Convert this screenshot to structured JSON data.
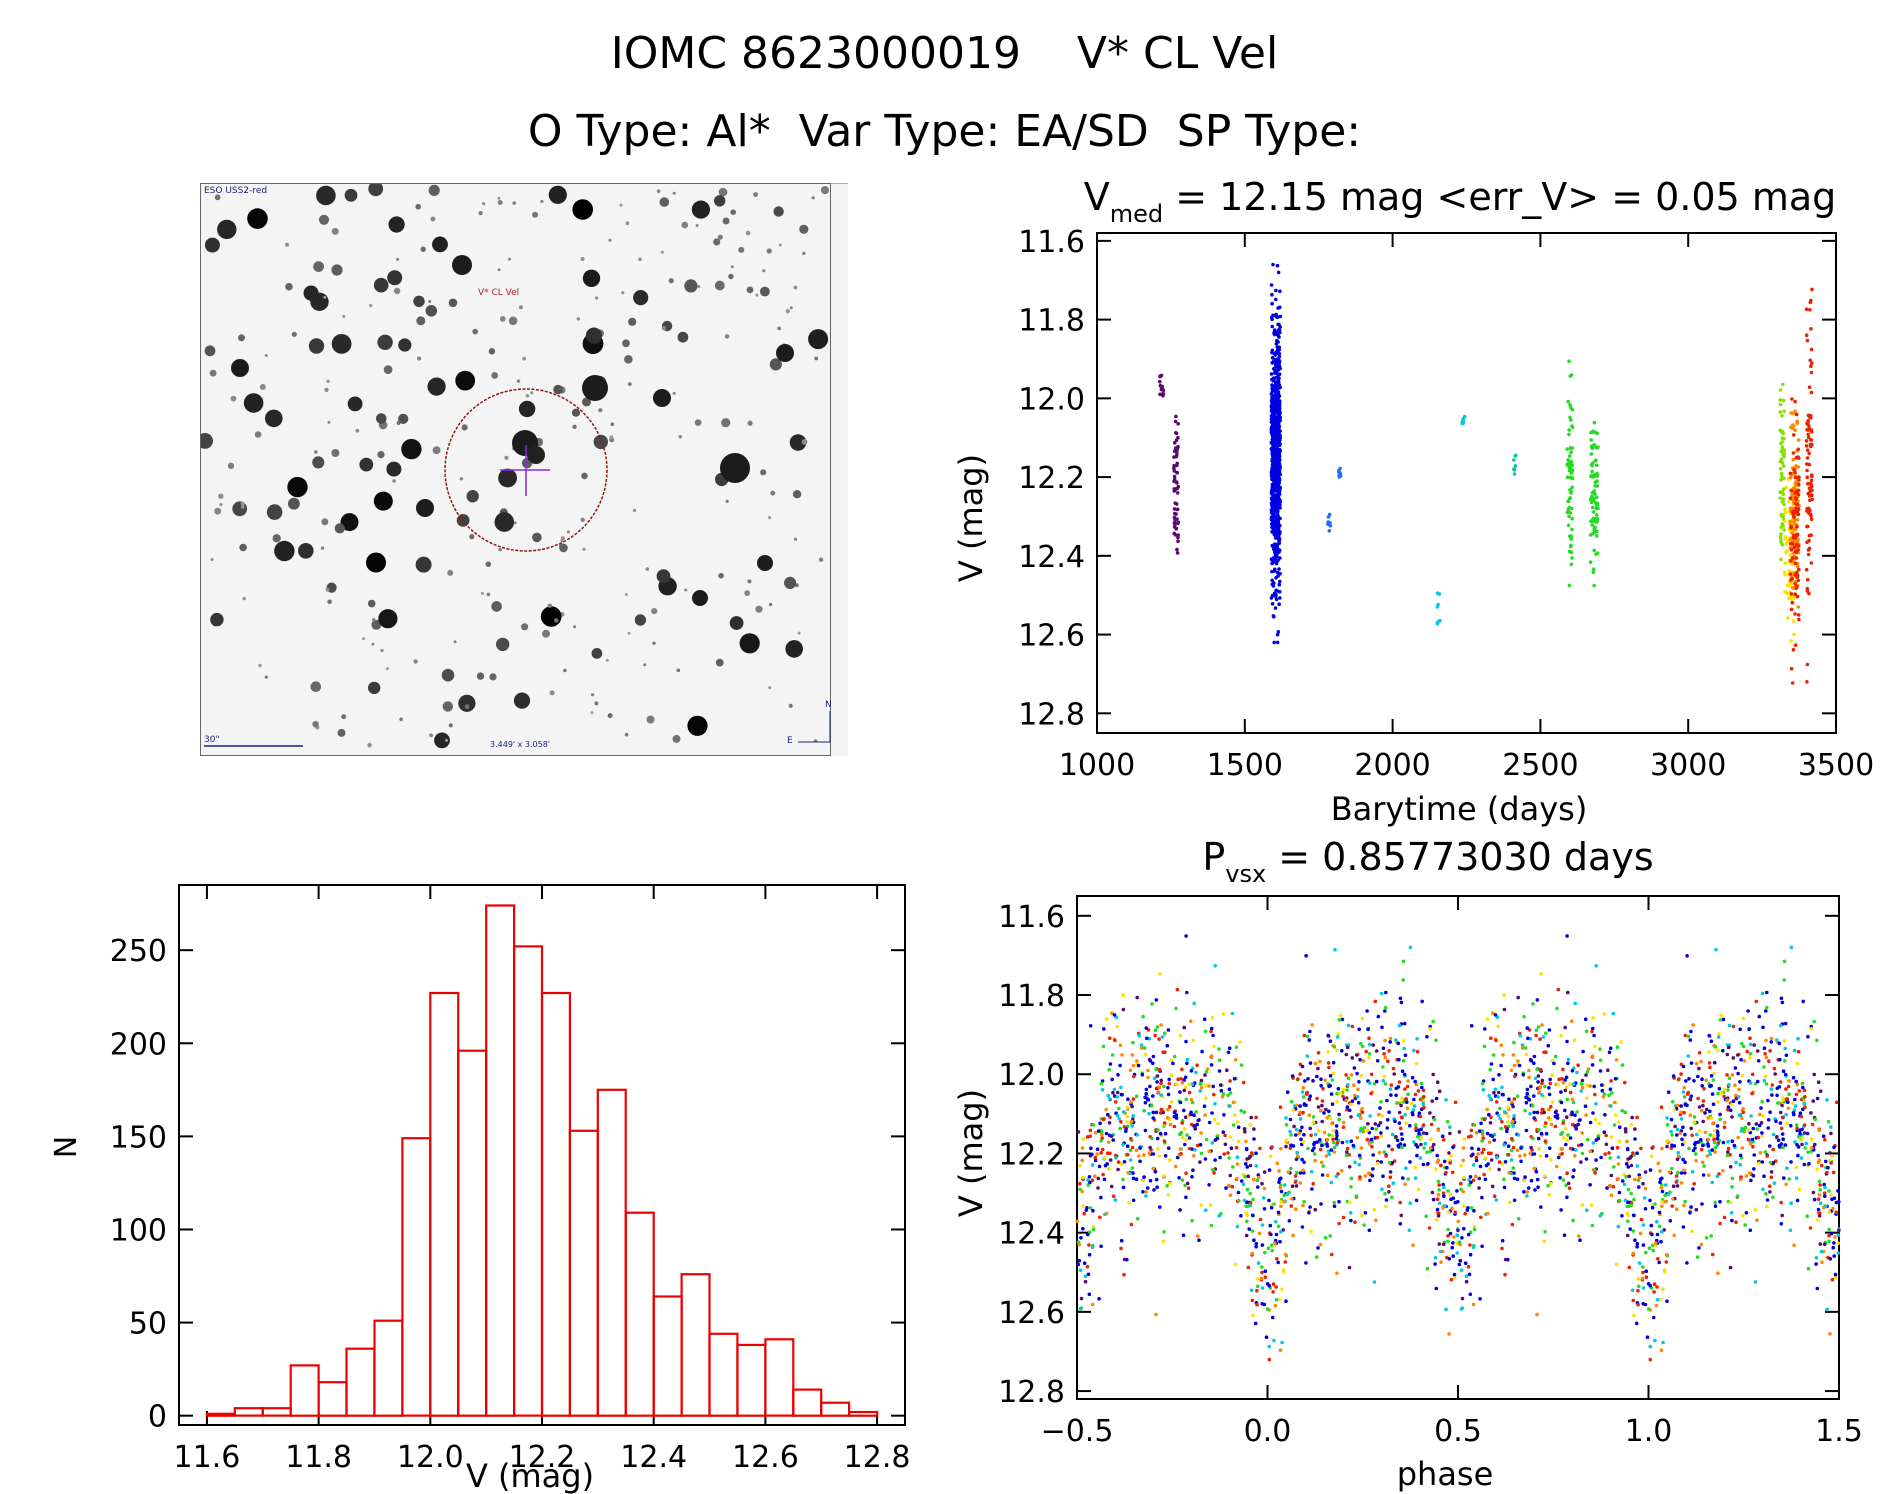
{
  "header": {
    "line1": "IOMC 8623000019    V* CL Vel",
    "line2": "O Type: Al*  Var Type: EA/SD  SP Type:"
  },
  "finder": {
    "survey_label": "ESO USS2-red",
    "target_label": "V* CL Vel",
    "scale_label": "30\"",
    "fov_label": "3.449' x 3.058'",
    "north_label": "N",
    "east_label": "E",
    "marker_color": "#8b1a1a",
    "crosshair_color": "#8a2be2"
  },
  "chart_data": [
    {
      "id": "lightcurve",
      "type": "scatter",
      "title_main": "V",
      "title_sub": "med",
      "title_rest": " = 12.15 mag <err_V> = 0.05 mag",
      "xlabel": "Barytime (days)",
      "ylabel": "V (mag)",
      "xlim": [
        1000,
        3500
      ],
      "ylim": [
        12.85,
        11.58
      ],
      "xticks": [
        1000,
        1500,
        2000,
        2500,
        3000,
        3500
      ],
      "xtick_labels": [
        "1000",
        "1500",
        "2000",
        "2500",
        "3000",
        "3500"
      ],
      "yticks": [
        11.6,
        11.8,
        12.0,
        12.2,
        12.4,
        12.6,
        12.8
      ],
      "ytick_labels": [
        "11.6",
        "11.8",
        "12.0",
        "12.2",
        "12.4",
        "12.6",
        "12.8"
      ],
      "groups": [
        {
          "color": "#5a0a6e",
          "x_range": [
            1210,
            1225
          ],
          "y_range": [
            11.9,
            12.02
          ],
          "n": 14
        },
        {
          "color": "#5a0a6e",
          "x_range": [
            1260,
            1275
          ],
          "y_range": [
            11.98,
            12.48
          ],
          "n": 60
        },
        {
          "color": "#0000e0",
          "x_range": [
            1590,
            1620
          ],
          "y_range": [
            11.66,
            12.62
          ],
          "n": 750
        },
        {
          "color": "#1e6fff",
          "x_range": [
            1780,
            1790
          ],
          "y_range": [
            12.28,
            12.38
          ],
          "n": 8
        },
        {
          "color": "#1e6fff",
          "x_range": [
            1815,
            1825
          ],
          "y_range": [
            12.16,
            12.22
          ],
          "n": 8
        },
        {
          "color": "#00c8e0",
          "x_range": [
            2150,
            2160
          ],
          "y_range": [
            12.47,
            12.61
          ],
          "n": 8
        },
        {
          "color": "#00c8e0",
          "x_range": [
            2235,
            2245
          ],
          "y_range": [
            12.02,
            12.1
          ],
          "n": 8
        },
        {
          "color": "#00c8a0",
          "x_range": [
            2410,
            2420
          ],
          "y_range": [
            12.1,
            12.22
          ],
          "n": 8
        },
        {
          "color": "#22dd22",
          "x_range": [
            2590,
            2610
          ],
          "y_range": [
            11.82,
            12.58
          ],
          "n": 70
        },
        {
          "color": "#22dd22",
          "x_range": [
            2670,
            2695
          ],
          "y_range": [
            11.95,
            12.58
          ],
          "n": 80
        },
        {
          "color": "#88e000",
          "x_range": [
            3310,
            3325
          ],
          "y_range": [
            11.88,
            12.55
          ],
          "n": 60
        },
        {
          "color": "#ffe000",
          "x_range": [
            3325,
            3360
          ],
          "y_range": [
            12.15,
            12.68
          ],
          "n": 80
        },
        {
          "color": "#ff8800",
          "x_range": [
            3345,
            3375
          ],
          "y_range": [
            11.95,
            12.58
          ],
          "n": 120
        },
        {
          "color": "#ee2200",
          "x_range": [
            3345,
            3375
          ],
          "y_range": [
            11.95,
            12.75
          ],
          "n": 90
        },
        {
          "color": "#ee2200",
          "x_range": [
            3400,
            3420
          ],
          "y_range": [
            11.6,
            12.72
          ],
          "n": 90
        }
      ]
    },
    {
      "id": "histogram",
      "type": "bar",
      "xlabel": "V (mag)",
      "ylabel": "N",
      "xlim": [
        11.55,
        12.85
      ],
      "ylim": [
        -5,
        285
      ],
      "xticks": [
        11.6,
        11.8,
        12.0,
        12.2,
        12.4,
        12.6,
        12.8
      ],
      "xtick_labels": [
        "11.6",
        "11.8",
        "12.0",
        "12.2",
        "12.4",
        "12.6",
        "12.8"
      ],
      "yticks": [
        0,
        50,
        100,
        150,
        200,
        250
      ],
      "ytick_labels": [
        "0",
        "50",
        "100",
        "150",
        "200",
        "250"
      ],
      "bin_start": 11.6,
      "bin_width": 0.05,
      "values": [
        1,
        4,
        4,
        27,
        18,
        36,
        51,
        149,
        227,
        196,
        274,
        252,
        227,
        153,
        175,
        109,
        64,
        76,
        44,
        38,
        41,
        14,
        7,
        2
      ]
    },
    {
      "id": "phased",
      "type": "scatter",
      "title_main": "P",
      "title_sub": "vsx",
      "title_rest": " = 0.85773030 days",
      "xlabel": "phase",
      "ylabel": "V (mag)",
      "xlim": [
        -0.5,
        1.5
      ],
      "ylim": [
        12.82,
        11.55
      ],
      "xticks": [
        -0.5,
        0.0,
        0.5,
        1.0,
        1.5
      ],
      "xtick_labels": [
        "−0.5",
        "0.0",
        "0.5",
        "1.0",
        "1.5"
      ],
      "yticks": [
        11.6,
        11.8,
        12.0,
        12.2,
        12.4,
        12.6,
        12.8
      ],
      "ytick_labels": [
        "11.6",
        "11.8",
        "12.0",
        "12.2",
        "12.4",
        "12.6",
        "12.8"
      ],
      "period_days": 0.8577303,
      "colors": [
        "#0000e0",
        "#22dd22",
        "#ee2200",
        "#ff8800",
        "#ffe000",
        "#00c8e0",
        "#5a0a6e"
      ],
      "n_points": 1400
    }
  ]
}
